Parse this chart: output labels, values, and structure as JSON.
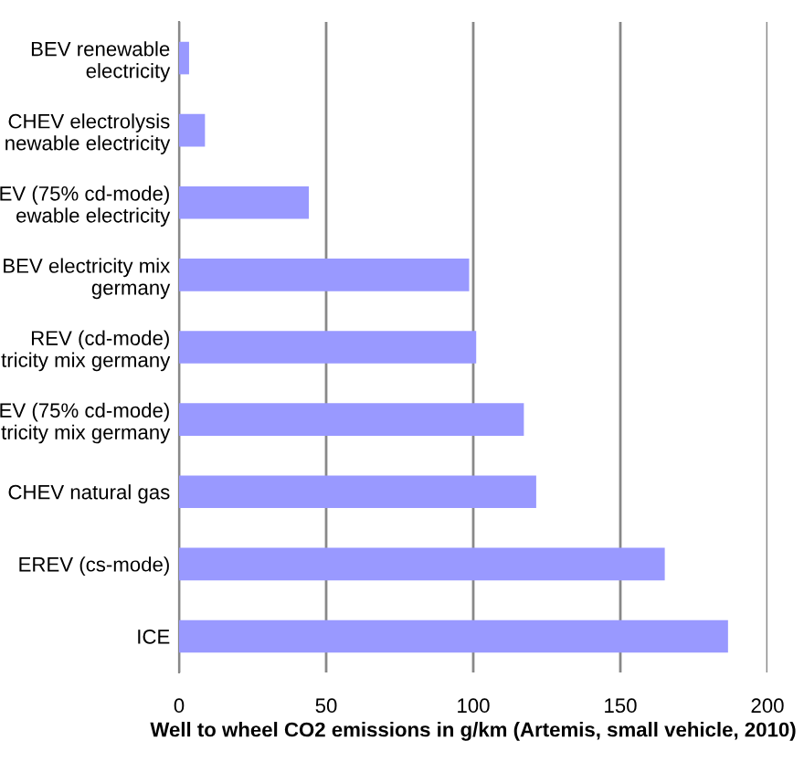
{
  "chart_data": {
    "type": "bar",
    "orientation": "horizontal",
    "categories": [
      "BEV renewable\nelectricity",
      "CHEV electrolysis\nnewable electricity",
      "EV (75% cd-mode)\newable electricity",
      "BEV electricity mix\ngermany",
      "REV (cd-mode)\ntricity mix germany",
      "EV (75% cd-mode)\ntricity mix germany",
      "CHEV natural gas",
      "EREV (cs-mode)",
      "ICE"
    ],
    "values": [
      3.4,
      8.8,
      44.1,
      98.6,
      101,
      117.2,
      121.4,
      165.1,
      186.6
    ],
    "color": "#9999ff",
    "xlabel": "Well to wheel CO2 emissions in g/km (Artemis, small vehicle, 2010)",
    "xlim": [
      0,
      200
    ],
    "xticks": [
      0,
      50,
      100,
      150,
      200
    ],
    "grid": "x"
  }
}
